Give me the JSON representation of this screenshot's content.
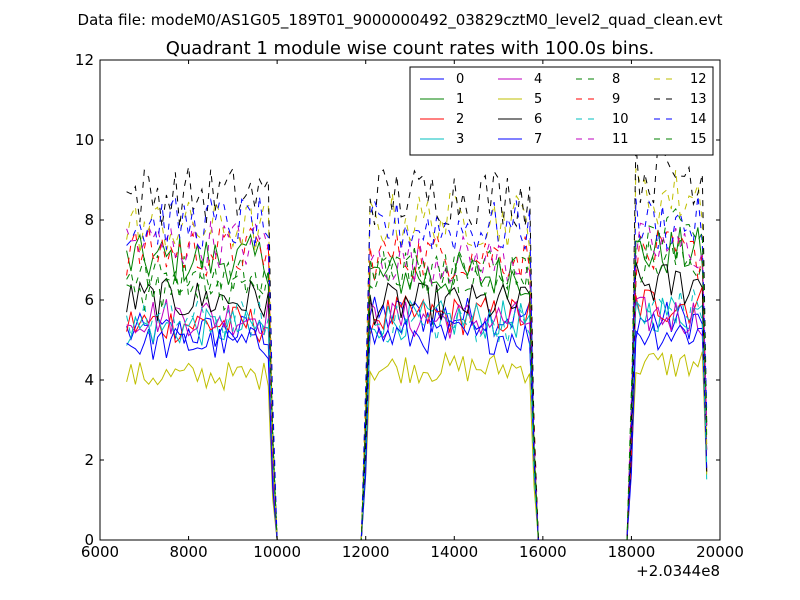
{
  "figure": {
    "suptitle": "Data file: modeM0/AS1G05_189T01_9000000492_03829cztM0_level2_quad_clean.evt"
  },
  "chart_data": {
    "type": "line",
    "title": "Quadrant 1 module wise count rates with 100.0s bins.",
    "xlabel": "",
    "ylabel": "",
    "xlim": [
      6000,
      20000
    ],
    "ylim": [
      0,
      12
    ],
    "x_offset_label": "+2.0344e8",
    "x_ticks": [
      6000,
      8000,
      10000,
      12000,
      14000,
      16000,
      18000,
      20000
    ],
    "x_tick_labels": [
      "6000",
      "8000",
      "10000",
      "12000",
      "14000",
      "16000",
      "18000",
      "20000"
    ],
    "y_ticks": [
      0,
      2,
      4,
      6,
      8,
      10,
      12
    ],
    "y_tick_labels": [
      "0",
      "2",
      "4",
      "6",
      "8",
      "10",
      "12"
    ],
    "grid": false,
    "legend": {
      "position": "top-right",
      "columns": 4
    },
    "bin_width": 100,
    "x_start": 6600,
    "x_end": 19700,
    "segments": [
      [
        6600,
        9800
      ],
      [
        12100,
        15700
      ],
      [
        18100,
        19600
      ]
    ],
    "series": [
      {
        "name": "0",
        "color": "#0000ff",
        "dash": "solid",
        "level_segments": [
          5.2,
          5.6,
          5.5
        ]
      },
      {
        "name": "1",
        "color": "#008000",
        "dash": "solid",
        "level_segments": [
          7.0,
          6.6,
          7.2
        ]
      },
      {
        "name": "2",
        "color": "#ff0000",
        "dash": "solid",
        "level_segments": [
          5.4,
          5.6,
          5.9
        ]
      },
      {
        "name": "3",
        "color": "#00bfbf",
        "dash": "solid",
        "level_segments": [
          5.3,
          5.5,
          5.7
        ]
      },
      {
        "name": "4",
        "color": "#bf00bf",
        "dash": "solid",
        "level_segments": [
          5.6,
          5.5,
          5.6
        ]
      },
      {
        "name": "5",
        "color": "#bfbf00",
        "dash": "solid",
        "level_segments": [
          4.1,
          4.3,
          4.4
        ]
      },
      {
        "name": "6",
        "color": "#000000",
        "dash": "solid",
        "level_segments": [
          6.0,
          5.9,
          6.4
        ]
      },
      {
        "name": "7",
        "color": "#0000ff",
        "dash": "solid",
        "level_segments": [
          4.9,
          5.1,
          5.2
        ]
      },
      {
        "name": "8",
        "color": "#008000",
        "dash": "dashed",
        "level_segments": [
          6.6,
          6.8,
          7.0
        ]
      },
      {
        "name": "9",
        "color": "#ff0000",
        "dash": "dashed",
        "level_segments": [
          7.2,
          7.1,
          7.1
        ]
      },
      {
        "name": "10",
        "color": "#00bfbf",
        "dash": "dashed",
        "level_segments": [
          5.5,
          5.4,
          5.8
        ]
      },
      {
        "name": "11",
        "color": "#bf00bf",
        "dash": "dashed",
        "level_segments": [
          7.4,
          7.0,
          7.3
        ]
      },
      {
        "name": "12",
        "color": "#bfbf00",
        "dash": "dashed",
        "level_segments": [
          7.8,
          8.0,
          8.6
        ]
      },
      {
        "name": "13",
        "color": "#000000",
        "dash": "dashed",
        "level_segments": [
          8.6,
          8.6,
          9.2
        ]
      },
      {
        "name": "14",
        "color": "#0000ff",
        "dash": "dashed",
        "level_segments": [
          7.9,
          7.8,
          7.9
        ]
      },
      {
        "name": "15",
        "color": "#008000",
        "dash": "dashed",
        "level_segments": [
          6.3,
          6.7,
          7.6
        ]
      }
    ]
  }
}
